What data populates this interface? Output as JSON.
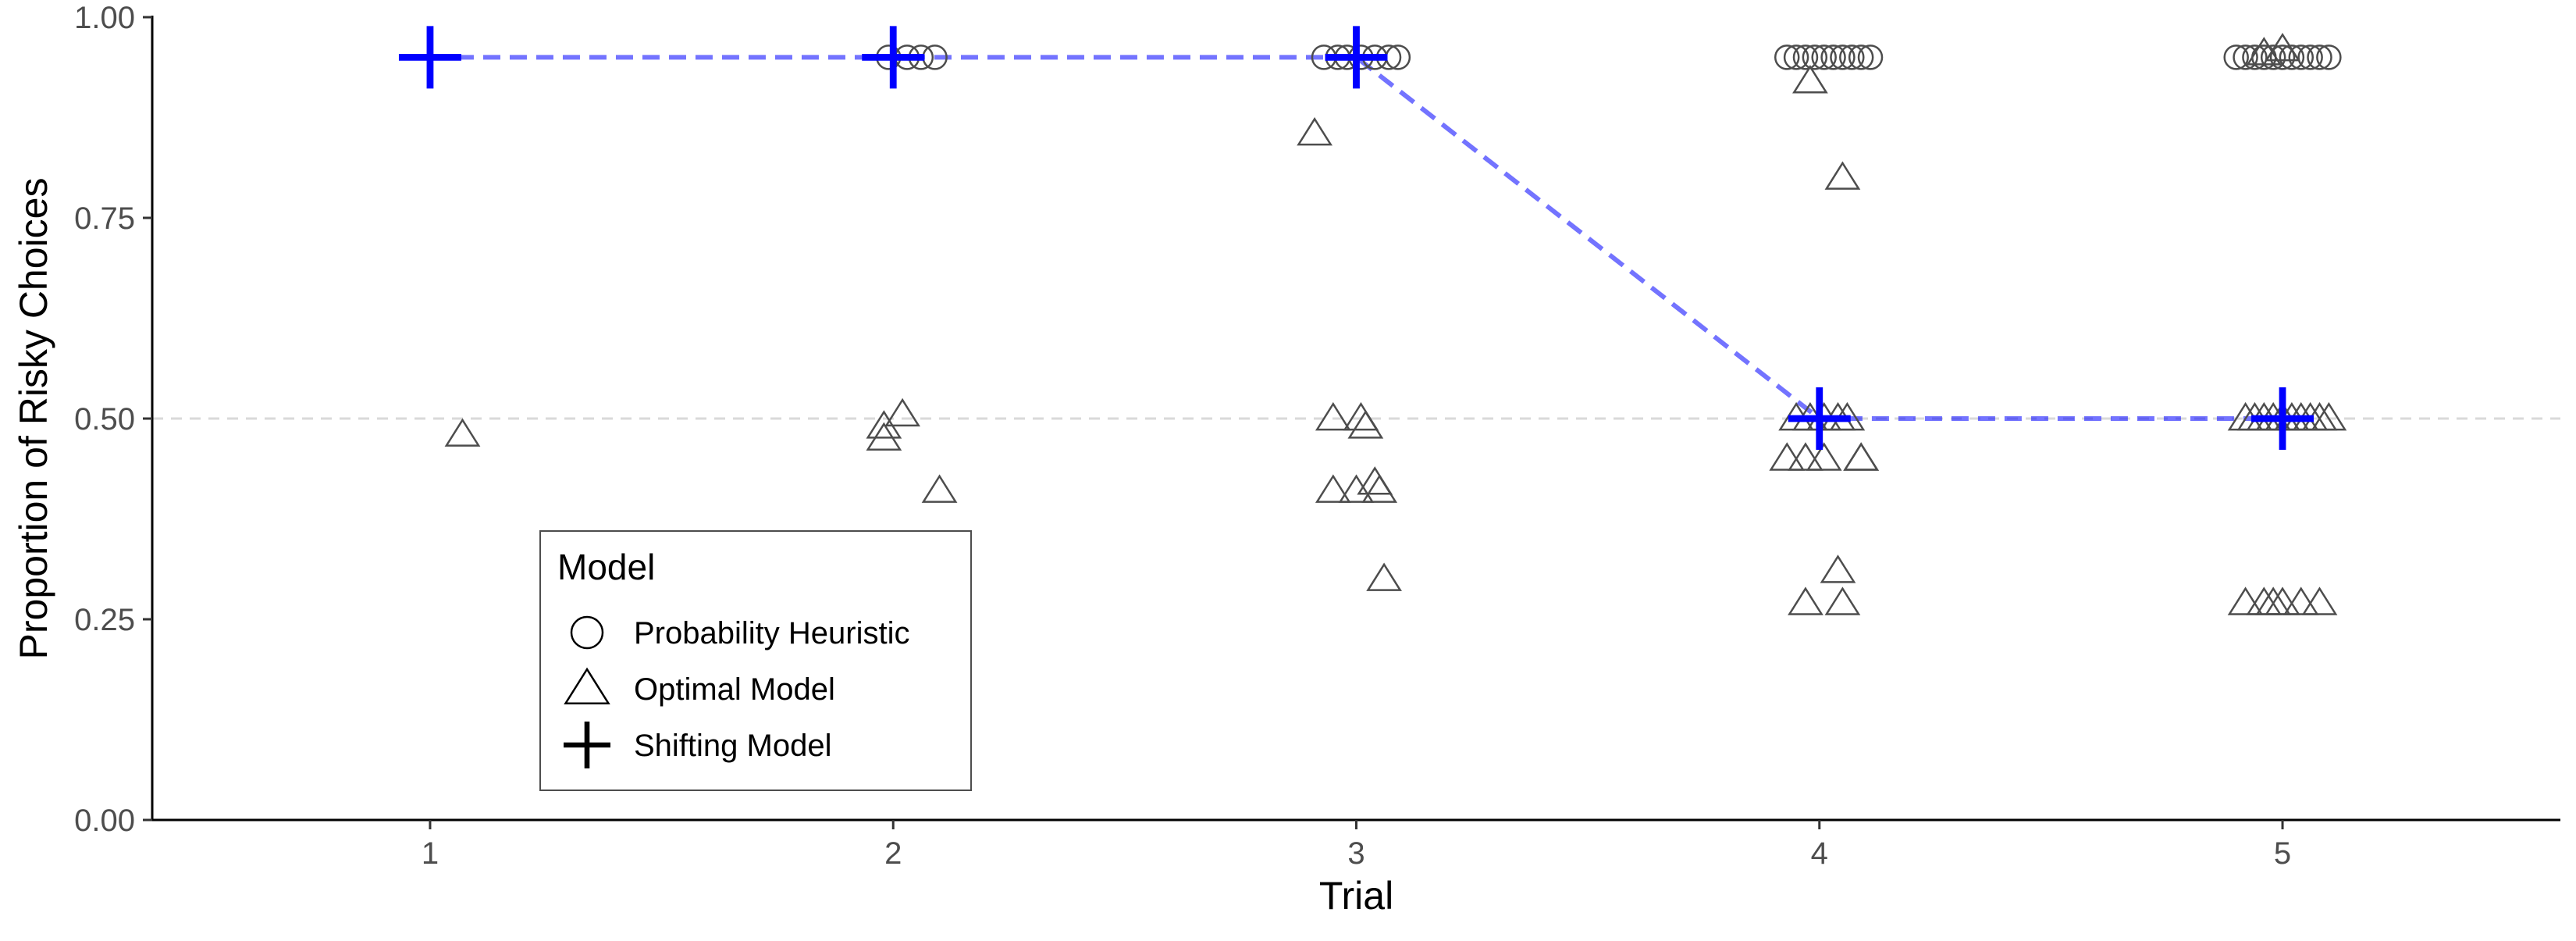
{
  "chart_data": {
    "type": "scatter",
    "xlabel": "Trial",
    "ylabel": "Proportion of Risky Choices",
    "xlim": [
      0.4,
      5.6
    ],
    "ylim": [
      0,
      1
    ],
    "x_ticks": [
      1,
      2,
      3,
      4,
      5
    ],
    "y_ticks": [
      0.0,
      0.25,
      0.5,
      0.75,
      1.0
    ],
    "x_tick_labels": [
      "1",
      "2",
      "3",
      "4",
      "5"
    ],
    "y_tick_labels": [
      "0.00",
      "0.25",
      "0.50",
      "0.75",
      "1.00"
    ],
    "reference_line": {
      "y": 0.5,
      "style": "dashed",
      "color": "#d9d9d9"
    },
    "grid": false,
    "legend": {
      "title": "Model",
      "position": "bottom-left",
      "entries": [
        {
          "label": "Probability Heuristic",
          "shape": "circle"
        },
        {
          "label": "Optimal Model",
          "shape": "triangle"
        },
        {
          "label": "Shifting Model",
          "shape": "cross"
        }
      ]
    },
    "series": [
      {
        "name": "Probability Heuristic",
        "shape": "circle",
        "color": "#4d4d4d",
        "points": [
          {
            "x": 1.99,
            "y": 0.95
          },
          {
            "x": 2.03,
            "y": 0.95
          },
          {
            "x": 2.06,
            "y": 0.95
          },
          {
            "x": 2.09,
            "y": 0.95
          },
          {
            "x": 2.93,
            "y": 0.95
          },
          {
            "x": 2.96,
            "y": 0.95
          },
          {
            "x": 2.98,
            "y": 0.95
          },
          {
            "x": 3.01,
            "y": 0.95
          },
          {
            "x": 3.04,
            "y": 0.95
          },
          {
            "x": 3.07,
            "y": 0.95
          },
          {
            "x": 3.09,
            "y": 0.95
          },
          {
            "x": 3.93,
            "y": 0.95
          },
          {
            "x": 3.95,
            "y": 0.95
          },
          {
            "x": 3.97,
            "y": 0.95
          },
          {
            "x": 3.99,
            "y": 0.95
          },
          {
            "x": 4.01,
            "y": 0.95
          },
          {
            "x": 4.03,
            "y": 0.95
          },
          {
            "x": 4.05,
            "y": 0.95
          },
          {
            "x": 4.07,
            "y": 0.95
          },
          {
            "x": 4.09,
            "y": 0.95
          },
          {
            "x": 4.11,
            "y": 0.95
          },
          {
            "x": 4.9,
            "y": 0.95
          },
          {
            "x": 4.92,
            "y": 0.95
          },
          {
            "x": 4.94,
            "y": 0.95
          },
          {
            "x": 4.96,
            "y": 0.95
          },
          {
            "x": 4.98,
            "y": 0.95
          },
          {
            "x": 5.0,
            "y": 0.95
          },
          {
            "x": 5.02,
            "y": 0.95
          },
          {
            "x": 5.04,
            "y": 0.95
          },
          {
            "x": 5.06,
            "y": 0.95
          },
          {
            "x": 5.08,
            "y": 0.95
          },
          {
            "x": 5.1,
            "y": 0.95
          }
        ]
      },
      {
        "name": "Optimal Model",
        "shape": "triangle",
        "color": "#4d4d4d",
        "points": [
          {
            "x": 1.07,
            "y": 0.48
          },
          {
            "x": 1.98,
            "y": 0.49
          },
          {
            "x": 1.98,
            "y": 0.475
          },
          {
            "x": 2.02,
            "y": 0.505
          },
          {
            "x": 2.1,
            "y": 0.41
          },
          {
            "x": 2.91,
            "y": 0.855
          },
          {
            "x": 2.95,
            "y": 0.5
          },
          {
            "x": 3.01,
            "y": 0.5
          },
          {
            "x": 3.02,
            "y": 0.49
          },
          {
            "x": 2.95,
            "y": 0.41
          },
          {
            "x": 3.0,
            "y": 0.41
          },
          {
            "x": 3.04,
            "y": 0.42
          },
          {
            "x": 3.05,
            "y": 0.41
          },
          {
            "x": 3.06,
            "y": 0.3
          },
          {
            "x": 3.98,
            "y": 0.92
          },
          {
            "x": 4.05,
            "y": 0.8
          },
          {
            "x": 3.95,
            "y": 0.5
          },
          {
            "x": 3.98,
            "y": 0.5
          },
          {
            "x": 4.01,
            "y": 0.5
          },
          {
            "x": 4.04,
            "y": 0.5
          },
          {
            "x": 4.06,
            "y": 0.5
          },
          {
            "x": 3.93,
            "y": 0.45
          },
          {
            "x": 3.97,
            "y": 0.45
          },
          {
            "x": 4.01,
            "y": 0.45
          },
          {
            "x": 4.09,
            "y": 0.45
          },
          {
            "x": 4.09,
            "y": 0.45
          },
          {
            "x": 4.04,
            "y": 0.31
          },
          {
            "x": 3.97,
            "y": 0.27
          },
          {
            "x": 4.05,
            "y": 0.27
          },
          {
            "x": 4.96,
            "y": 0.955
          },
          {
            "x": 5.0,
            "y": 0.96
          },
          {
            "x": 4.92,
            "y": 0.5
          },
          {
            "x": 4.94,
            "y": 0.5
          },
          {
            "x": 4.96,
            "y": 0.5
          },
          {
            "x": 4.98,
            "y": 0.5
          },
          {
            "x": 5.0,
            "y": 0.5
          },
          {
            "x": 5.02,
            "y": 0.5
          },
          {
            "x": 5.04,
            "y": 0.5
          },
          {
            "x": 5.06,
            "y": 0.5
          },
          {
            "x": 5.08,
            "y": 0.5
          },
          {
            "x": 5.1,
            "y": 0.5
          },
          {
            "x": 4.92,
            "y": 0.27
          },
          {
            "x": 4.96,
            "y": 0.27
          },
          {
            "x": 4.98,
            "y": 0.27
          },
          {
            "x": 5.0,
            "y": 0.27
          },
          {
            "x": 5.04,
            "y": 0.27
          },
          {
            "x": 5.08,
            "y": 0.27
          }
        ]
      },
      {
        "name": "Shifting Model",
        "shape": "cross",
        "color": "#0000ff",
        "line": {
          "style": "dashed",
          "color": "#0000ff",
          "opacity": 0.55
        },
        "points": [
          {
            "x": 1,
            "y": 0.95
          },
          {
            "x": 2,
            "y": 0.95
          },
          {
            "x": 3,
            "y": 0.95
          },
          {
            "x": 4,
            "y": 0.5
          },
          {
            "x": 5,
            "y": 0.5
          }
        ]
      }
    ]
  }
}
